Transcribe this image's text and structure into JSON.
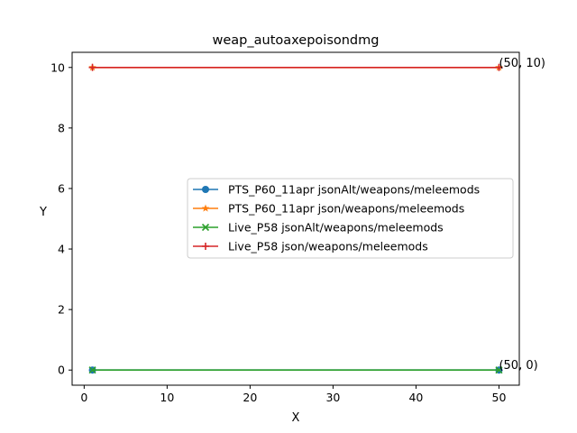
{
  "chart_data": {
    "type": "line",
    "title": "weap_autoaxepoisondmg",
    "xlabel": "X",
    "ylabel": "Y",
    "xlim": [
      -1.45,
      52.45
    ],
    "ylim": [
      -0.5,
      10.5
    ],
    "xticks": [
      0,
      10,
      20,
      30,
      40,
      50
    ],
    "yticks": [
      0,
      2,
      4,
      6,
      8,
      10
    ],
    "grid": false,
    "legend_position": "center-right",
    "series": [
      {
        "name": "PTS_P60_11apr jsonAlt/weapons/meleemods",
        "color": "#1f77b4",
        "marker": "circle",
        "x": [
          1,
          50
        ],
        "y": [
          0,
          0
        ]
      },
      {
        "name": "PTS_P60_11apr json/weapons/meleemods",
        "color": "#ff7f0e",
        "marker": "star",
        "x": [
          1,
          50
        ],
        "y": [
          10,
          10
        ]
      },
      {
        "name": "Live_P58 jsonAlt/weapons/meleemods",
        "color": "#2ca02c",
        "marker": "x",
        "x": [
          1,
          50
        ],
        "y": [
          0,
          0
        ]
      },
      {
        "name": "Live_P58 json/weapons/meleemods",
        "color": "#d62728",
        "marker": "plus",
        "x": [
          1,
          50
        ],
        "y": [
          10,
          10
        ]
      }
    ],
    "annotations": [
      {
        "text": "(50, 10)",
        "x": 50,
        "y": 10
      },
      {
        "text": "(50, 0)",
        "x": 50,
        "y": 0
      }
    ]
  }
}
